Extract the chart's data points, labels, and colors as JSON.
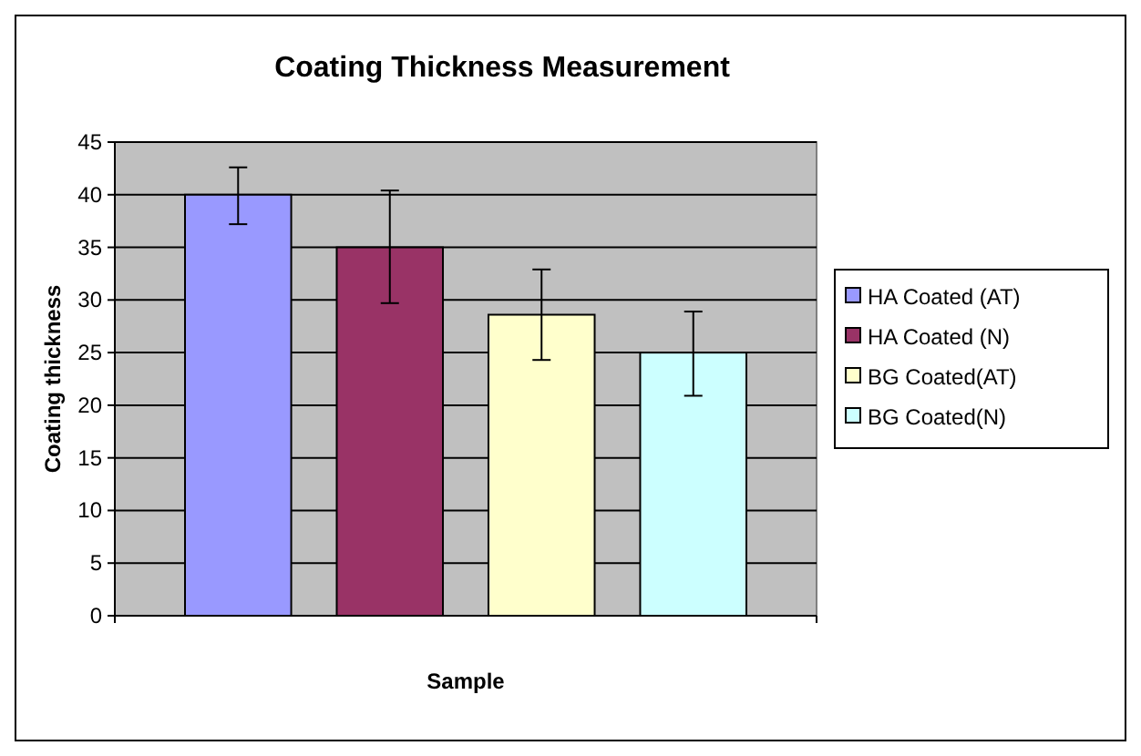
{
  "chart_data": {
    "type": "bar",
    "title": "Coating Thickness Measurement",
    "xlabel": "Sample",
    "ylabel": "Coating thickness",
    "categories": [
      null
    ],
    "series": [
      {
        "name": "HA Coated (AT)",
        "color": "#9999ff",
        "values": [
          40
        ],
        "errors": [
          [
            37.2,
            42.6
          ]
        ]
      },
      {
        "name": "HA Coated (N)",
        "color": "#993366",
        "values": [
          35
        ],
        "errors": [
          [
            29.7,
            40.4
          ]
        ]
      },
      {
        "name": "BG Coated(AT)",
        "color": "#ffffcc",
        "values": [
          28.6
        ],
        "errors": [
          [
            24.3,
            32.9
          ]
        ]
      },
      {
        "name": "BG Coated(N)",
        "color": "#ccffff",
        "values": [
          25
        ],
        "errors": [
          [
            20.9,
            28.9
          ]
        ]
      }
    ],
    "ylim": [
      0,
      45
    ],
    "yticks": [
      0,
      5,
      10,
      15,
      20,
      25,
      30,
      35,
      40,
      45
    ],
    "grid": "y",
    "legend": "right"
  }
}
